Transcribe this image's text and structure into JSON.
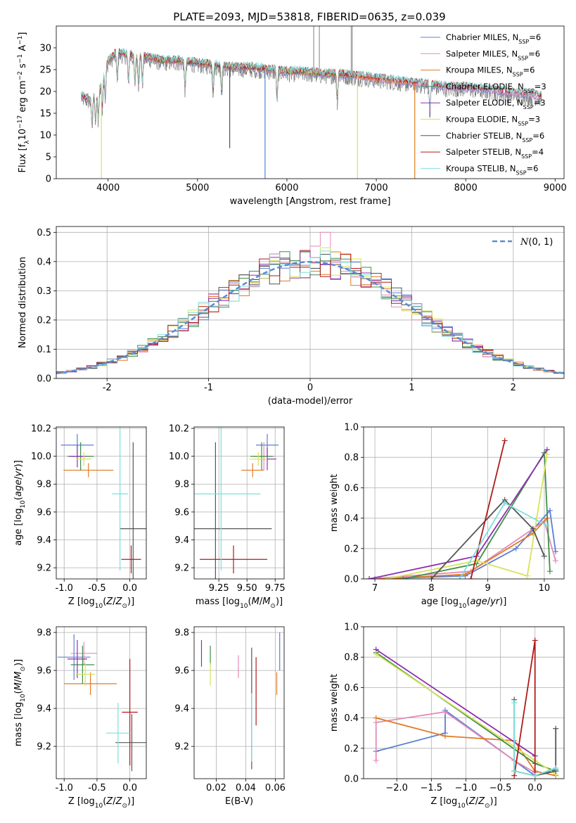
{
  "figure": {
    "title": "PLATE=2093, MJD=53818, FIBERID=0635, z=0.039"
  },
  "colors": {
    "Chabrier MILES": "#5b7fd3",
    "Salpeter MILES": "#e48ab8",
    "Kroupa MILES": "#e07b24",
    "Chabrier ELODIE": "#3f8f4a",
    "Salpeter ELODIE": "#8e2fb0",
    "Kroupa ELODIE": "#d7e35a",
    "Chabrier STELIB": "#555555",
    "Salpeter STELIB": "#b01a1a",
    "Kroupa STELIB": "#7fdede",
    "gaussian": "#5b8bd8"
  },
  "chart_data": [
    {
      "id": "spectrum",
      "type": "line",
      "xlabel": "wavelength [Angstrom, rest frame]",
      "ylabel": "Flux [f_λ10^-17 erg cm^-2 s^-1 A^-1]",
      "xlim": [
        3420,
        9100
      ],
      "ylim": [
        0,
        35
      ],
      "xticks": [
        4000,
        5000,
        6000,
        7000,
        8000,
        9000
      ],
      "yticks": [
        0,
        5,
        10,
        15,
        20,
        25,
        30
      ],
      "grid": false,
      "legend_position": "top-right",
      "legend": [
        {
          "name": "Chabrier MILES",
          "nssp": "6"
        },
        {
          "name": "Salpeter MILES",
          "nssp": "6"
        },
        {
          "name": "Kroupa MILES",
          "nssp": "6"
        },
        {
          "name": "Chabrier ELODIE",
          "nssp": "3"
        },
        {
          "name": "Salpeter ELODIE",
          "nssp": "3"
        },
        {
          "name": "Kroupa ELODIE",
          "nssp": "3"
        },
        {
          "name": "Chabrier STELIB",
          "nssp": "6"
        },
        {
          "name": "Salpeter STELIB",
          "nssp": "4"
        },
        {
          "name": "Kroupa STELIB",
          "nssp": "6"
        }
      ],
      "continuum": [
        [
          3700,
          19
        ],
        [
          3800,
          18
        ],
        [
          3900,
          20
        ],
        [
          4000,
          27
        ],
        [
          4100,
          29
        ],
        [
          4200,
          28.5
        ],
        [
          4300,
          28
        ],
        [
          4400,
          28
        ],
        [
          4500,
          27.5
        ],
        [
          4600,
          27
        ],
        [
          4800,
          27
        ],
        [
          5000,
          26.5
        ],
        [
          5200,
          26
        ],
        [
          5400,
          25.5
        ],
        [
          5600,
          25.5
        ],
        [
          5800,
          25
        ],
        [
          6000,
          24.5
        ],
        [
          6200,
          24.5
        ],
        [
          6400,
          24
        ],
        [
          6600,
          24
        ],
        [
          6800,
          23.5
        ],
        [
          7000,
          23
        ],
        [
          7200,
          22.5
        ],
        [
          7400,
          22
        ],
        [
          7600,
          21.5
        ],
        [
          7800,
          21
        ],
        [
          8000,
          21
        ],
        [
          8200,
          20.5
        ],
        [
          8400,
          20
        ],
        [
          8600,
          19.5
        ],
        [
          8800,
          19
        ]
      ],
      "features": [
        {
          "model": "Kroupa ELODIE",
          "x": 3925,
          "y": 0
        },
        {
          "model": "Chabrier MILES",
          "x": 5755,
          "y": 0
        },
        {
          "model": "Kroupa STELIB",
          "x": 5760,
          "y": 0
        },
        {
          "model": "Kroupa ELODIE",
          "x": 6790,
          "y": 0
        },
        {
          "model": "Kroupa MILES",
          "x": 7430,
          "y": 0
        },
        {
          "model": "Chabrier STELIB",
          "x": 5360,
          "y": 7
        }
      ]
    },
    {
      "id": "residuals",
      "type": "histogram",
      "xlabel": "(data-model)/error",
      "ylabel": "Normed distribution",
      "xlim": [
        -2.5,
        2.5
      ],
      "ylim": [
        0,
        0.52
      ],
      "xticks": [
        -2,
        -1,
        0,
        1,
        2
      ],
      "yticks": [
        0.0,
        0.1,
        0.2,
        0.3,
        0.4,
        0.5
      ],
      "grid": true,
      "legend_position": "top-right",
      "legend": [
        {
          "name": "N(0,1)",
          "style": "dashed"
        }
      ],
      "bin_width": 0.1
    },
    {
      "id": "age_vs_Z",
      "type": "errorbar",
      "xlabel": "Z [log10(Z/Z_sun)]",
      "ylabel": "age [log10(age/yr)]",
      "xlim": [
        -1.12,
        0.25
      ],
      "ylim": [
        9.12,
        10.21
      ],
      "xticks": [
        -1.0,
        -0.5,
        0.0
      ],
      "yticks": [
        9.2,
        9.4,
        9.6,
        9.8,
        10.0,
        10.2
      ],
      "grid": true,
      "points": [
        {
          "model": "Chabrier MILES",
          "x": -0.8,
          "y": 10.08,
          "xerr": 0.25,
          "yerr": 0.08
        },
        {
          "model": "Salpeter MILES",
          "x": -0.75,
          "y": 10.0,
          "xerr": 0.15,
          "yerr": 0.1
        },
        {
          "model": "Kroupa MILES",
          "x": -0.63,
          "y": 9.9,
          "xerr": 0.38,
          "yerr": 0.05
        },
        {
          "model": "Chabrier ELODIE",
          "x": -0.75,
          "y": 10.0,
          "xerr": 0.2,
          "yerr": 0.1
        },
        {
          "model": "Salpeter ELODIE",
          "x": -0.8,
          "y": 10.0,
          "xerr": 0.12,
          "yerr": 0.08
        },
        {
          "model": "Kroupa ELODIE",
          "x": -0.7,
          "y": 9.98,
          "xerr": 0.12,
          "yerr": 0.05
        },
        {
          "model": "Chabrier STELIB",
          "x": 0.05,
          "y": 9.48,
          "xerr": 0.2,
          "yerr": 0.62
        },
        {
          "model": "Salpeter STELIB",
          "x": 0.02,
          "y": 9.26,
          "xerr": 0.15,
          "yerr": 0.1
        },
        {
          "model": "Kroupa STELIB",
          "x": -0.15,
          "y": 9.73,
          "xerr": 0.12,
          "yerr": 0.55
        }
      ]
    },
    {
      "id": "age_vs_mass",
      "type": "errorbar",
      "xlabel": "mass [log10(M/M_sun)]",
      "ylabel": "",
      "xlim": [
        9.03,
        9.83
      ],
      "ylim": [
        9.12,
        10.21
      ],
      "xticks": [
        9.25,
        9.5,
        9.75
      ],
      "yticks": [
        9.2,
        9.4,
        9.6,
        9.8,
        10.0,
        10.2
      ],
      "grid": true,
      "points": [
        {
          "model": "Chabrier MILES",
          "x": 9.68,
          "y": 10.08,
          "xerr": 0.1,
          "yerr": 0.08
        },
        {
          "model": "Salpeter MILES",
          "x": 9.65,
          "y": 10.0,
          "xerr": 0.1,
          "yerr": 0.1
        },
        {
          "model": "Kroupa MILES",
          "x": 9.55,
          "y": 9.9,
          "xerr": 0.1,
          "yerr": 0.05
        },
        {
          "model": "Chabrier ELODIE",
          "x": 9.63,
          "y": 10.0,
          "xerr": 0.1,
          "yerr": 0.1
        },
        {
          "model": "Salpeter ELODIE",
          "x": 9.68,
          "y": 9.98,
          "xerr": 0.08,
          "yerr": 0.08
        },
        {
          "model": "Kroupa ELODIE",
          "x": 9.6,
          "y": 9.98,
          "xerr": 0.08,
          "yerr": 0.05
        },
        {
          "model": "Chabrier STELIB",
          "x": 9.22,
          "y": 9.48,
          "xerr": 0.5,
          "yerr": 0.62
        },
        {
          "model": "Salpeter STELIB",
          "x": 9.38,
          "y": 9.26,
          "xerr": 0.3,
          "yerr": 0.1
        },
        {
          "model": "Kroupa STELIB",
          "x": 9.27,
          "y": 9.73,
          "xerr": 0.35,
          "yerr": 0.55
        }
      ]
    },
    {
      "id": "mass_weight_vs_age",
      "type": "line",
      "xlabel": "age [log10(age/yr)]",
      "ylabel": "mass weight",
      "xlim": [
        6.8,
        10.35
      ],
      "ylim": [
        0,
        1.0
      ],
      "xticks": [
        7,
        8,
        9,
        10
      ],
      "yticks": [
        0.0,
        0.2,
        0.4,
        0.6,
        0.8,
        1.0
      ],
      "grid": true,
      "series": [
        {
          "model": "Chabrier MILES",
          "x": [
            7.0,
            8.6,
            9.5,
            10.1,
            10.2
          ],
          "y": [
            0.0,
            0.02,
            0.2,
            0.45,
            0.18
          ]
        },
        {
          "model": "Salpeter MILES",
          "x": [
            6.9,
            8.7,
            10.0,
            10.2
          ],
          "y": [
            0.0,
            0.05,
            0.38,
            0.12
          ]
        },
        {
          "model": "Kroupa MILES",
          "x": [
            7.1,
            8.6,
            9.8,
            10.05
          ],
          "y": [
            0.0,
            0.03,
            0.3,
            0.4
          ]
        },
        {
          "model": "Chabrier ELODIE",
          "x": [
            7.5,
            8.8,
            10.0,
            10.1
          ],
          "y": [
            0.0,
            0.1,
            0.83,
            0.05
          ]
        },
        {
          "model": "Salpeter ELODIE",
          "x": [
            6.9,
            8.8,
            10.05
          ],
          "y": [
            0.0,
            0.15,
            0.85
          ]
        },
        {
          "model": "Kroupa ELODIE",
          "x": [
            7.2,
            8.8,
            9.7,
            10.05
          ],
          "y": [
            0.0,
            0.12,
            0.02,
            0.82
          ]
        },
        {
          "model": "Chabrier STELIB",
          "x": [
            8.0,
            9.3,
            9.8,
            10.0
          ],
          "y": [
            0.0,
            0.52,
            0.33,
            0.15
          ]
        },
        {
          "model": "Salpeter STELIB",
          "x": [
            8.7,
            9.3
          ],
          "y": [
            0.0,
            0.91
          ]
        },
        {
          "model": "Kroupa STELIB",
          "x": [
            8.5,
            9.3,
            10.05
          ],
          "y": [
            0.0,
            0.5,
            0.35
          ]
        }
      ]
    },
    {
      "id": "mass_vs_Z",
      "type": "errorbar",
      "xlabel": "Z [log10(Z/Z_sun)]",
      "ylabel": "mass [log10(M/M_sun)]",
      "xlim": [
        -1.12,
        0.25
      ],
      "ylim": [
        9.03,
        9.83
      ],
      "xticks": [
        -1.0,
        -0.5,
        0.0
      ],
      "yticks": [
        9.2,
        9.4,
        9.6,
        9.8
      ],
      "grid": true,
      "points": [
        {
          "model": "Chabrier MILES",
          "x": -0.85,
          "y": 9.67,
          "xerr": 0.25,
          "yerr": 0.12
        },
        {
          "model": "Salpeter MILES",
          "x": -0.7,
          "y": 9.69,
          "xerr": 0.2,
          "yerr": 0.06
        },
        {
          "model": "Kroupa MILES",
          "x": -0.6,
          "y": 9.53,
          "xerr": 0.4,
          "yerr": 0.06
        },
        {
          "model": "Chabrier ELODIE",
          "x": -0.72,
          "y": 9.63,
          "xerr": 0.18,
          "yerr": 0.1
        },
        {
          "model": "Salpeter ELODIE",
          "x": -0.8,
          "y": 9.66,
          "xerr": 0.15,
          "yerr": 0.1
        },
        {
          "model": "Kroupa ELODIE",
          "x": -0.68,
          "y": 9.58,
          "xerr": 0.15,
          "yerr": 0.06
        },
        {
          "model": "Chabrier STELIB",
          "x": 0.03,
          "y": 9.22,
          "xerr": 0.25,
          "yerr": 0.15
        },
        {
          "model": "Salpeter STELIB",
          "x": 0.0,
          "y": 9.38,
          "xerr": 0.12,
          "yerr": 0.28
        },
        {
          "model": "Kroupa STELIB",
          "x": -0.18,
          "y": 9.27,
          "xerr": 0.18,
          "yerr": 0.16
        }
      ]
    },
    {
      "id": "mass_vs_EBV",
      "type": "errorbar",
      "xlabel": "E(B-V)",
      "ylabel": "",
      "xlim": [
        0.005,
        0.066
      ],
      "ylim": [
        9.03,
        9.83
      ],
      "xticks": [
        0.02,
        0.04,
        0.06
      ],
      "yticks": [
        9.2,
        9.4,
        9.6,
        9.8
      ],
      "grid": true,
      "points": [
        {
          "model": "Chabrier MILES",
          "x": 0.063,
          "y": 9.7,
          "yerr": 0.1
        },
        {
          "model": "Salpeter MILES",
          "x": 0.035,
          "y": 9.62,
          "yerr": 0.06
        },
        {
          "model": "Kroupa MILES",
          "x": 0.061,
          "y": 9.53,
          "yerr": 0.06
        },
        {
          "model": "Chabrier ELODIE",
          "x": 0.016,
          "y": 9.68,
          "yerr": 0.05
        },
        {
          "model": "Salpeter ELODIE",
          "x": 0.01,
          "y": 9.69,
          "yerr": 0.07
        },
        {
          "model": "Kroupa ELODIE",
          "x": 0.016,
          "y": 9.58,
          "yerr": 0.06
        },
        {
          "model": "Chabrier STELIB",
          "x": 0.044,
          "y": 9.4,
          "yerr": 0.32
        },
        {
          "model": "Salpeter STELIB",
          "x": 0.047,
          "y": 9.49,
          "yerr": 0.18
        },
        {
          "model": "Kroupa STELIB",
          "x": 0.044,
          "y": 9.3,
          "yerr": 0.18
        }
      ]
    },
    {
      "id": "mass_weight_vs_Z",
      "type": "line",
      "xlabel": "Z [log10(Z/Z_sun)]",
      "ylabel": "mass weight",
      "xlim": [
        -2.48,
        0.42
      ],
      "ylim": [
        0,
        1.0
      ],
      "xticks": [
        -2.0,
        -1.5,
        -1.0,
        -0.5,
        0.0
      ],
      "yticks": [
        0.0,
        0.2,
        0.4,
        0.6,
        0.8,
        1.0
      ],
      "grid": true,
      "series": [
        {
          "model": "Chabrier MILES",
          "x": [
            -2.3,
            -1.3,
            -1.3,
            0.0,
            0.3
          ],
          "y": [
            0.18,
            0.3,
            0.45,
            0.02,
            0.06
          ]
        },
        {
          "model": "Salpeter MILES",
          "x": [
            -2.3,
            -2.3,
            -1.3,
            -0.3,
            0.0
          ],
          "y": [
            0.12,
            0.37,
            0.44,
            0.12,
            0.04
          ]
        },
        {
          "model": "Kroupa MILES",
          "x": [
            -2.3,
            -1.3,
            -0.3,
            0.0,
            0.3
          ],
          "y": [
            0.4,
            0.28,
            0.25,
            0.05,
            0.02
          ]
        },
        {
          "model": "Chabrier ELODIE",
          "x": [
            -2.3,
            0.0,
            0.3
          ],
          "y": [
            0.83,
            0.1,
            0.05
          ]
        },
        {
          "model": "Salpeter ELODIE",
          "x": [
            -2.3,
            0.0
          ],
          "y": [
            0.85,
            0.15
          ]
        },
        {
          "model": "Kroupa ELODIE",
          "x": [
            -2.3,
            0.0,
            0.3
          ],
          "y": [
            0.82,
            0.12,
            0.03
          ]
        },
        {
          "model": "Chabrier STELIB",
          "x": [
            -0.3,
            -0.3,
            0.0,
            0.3,
            0.3
          ],
          "y": [
            0.52,
            0.05,
            0.02,
            0.05,
            0.33
          ]
        },
        {
          "model": "Salpeter STELIB",
          "x": [
            -0.3,
            0.0,
            0.0
          ],
          "y": [
            0.02,
            0.91,
            0.02
          ]
        },
        {
          "model": "Kroupa STELIB",
          "x": [
            -0.3,
            -0.3,
            0.0,
            0.3
          ],
          "y": [
            0.5,
            0.05,
            0.02,
            0.07
          ]
        }
      ]
    }
  ]
}
